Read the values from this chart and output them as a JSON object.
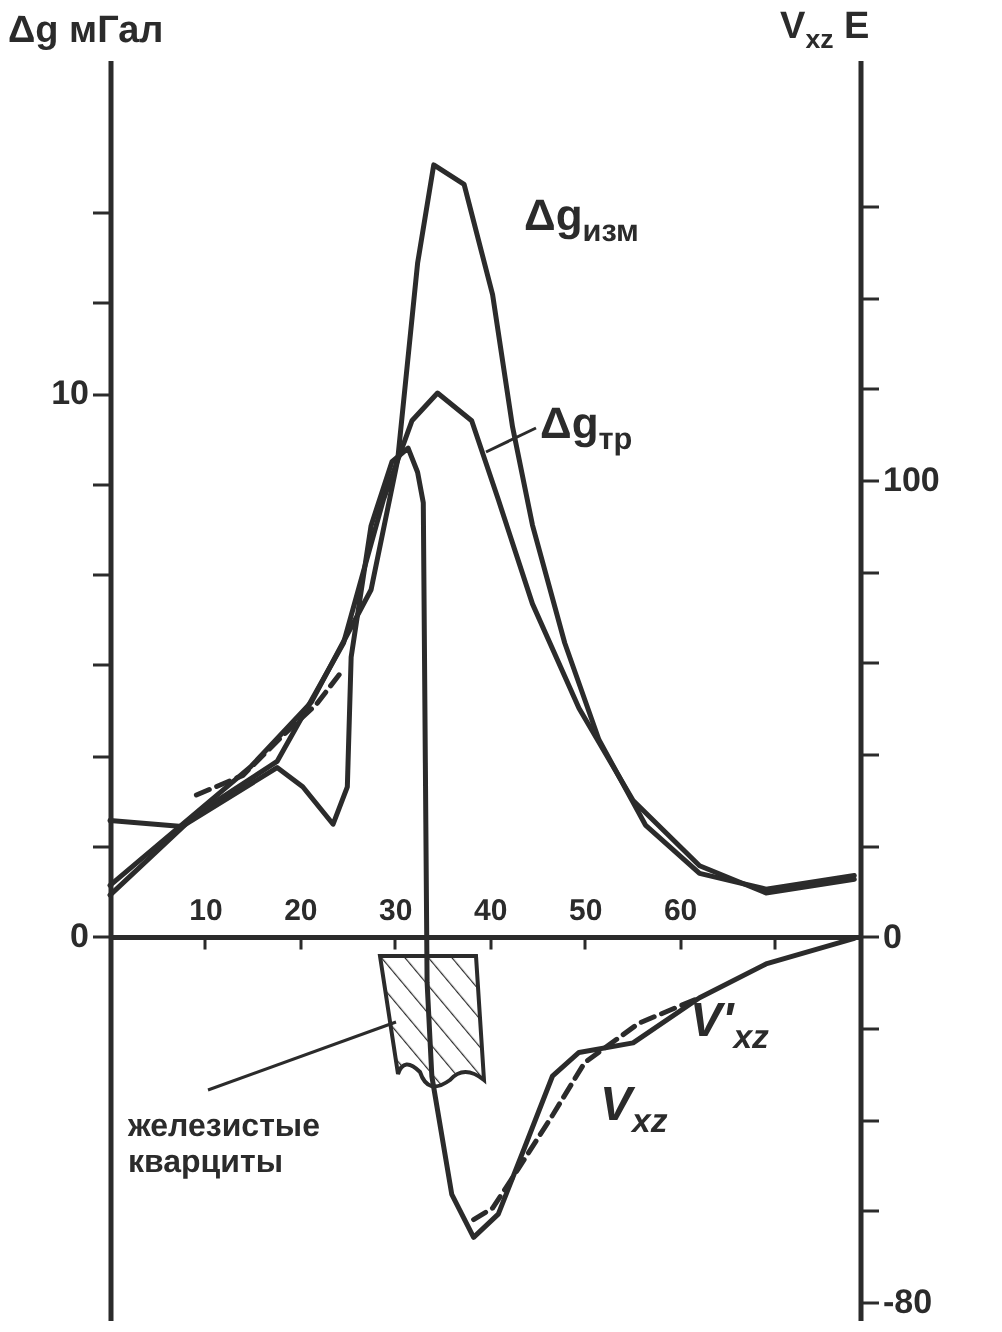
{
  "chart_data": {
    "type": "line",
    "ylabel": "Δg мГал",
    "y2label": "V$_{xz}$ E",
    "xlim": [
      0,
      79
    ],
    "xticks": [
      10,
      20,
      30,
      40,
      50,
      60,
      {
        "value": 70,
        "label": null
      }
    ],
    "ylim": [
      -7.06,
      16.13
    ],
    "yticks": [
      0,
      {
        "value": 1.67,
        "label": null
      },
      {
        "value": 3.33,
        "label": null
      },
      {
        "value": 5,
        "label": null
      },
      {
        "value": 6.67,
        "label": null
      },
      {
        "value": 8.33,
        "label": null
      },
      10,
      {
        "value": 11.67,
        "label": null
      },
      {
        "value": 13.33,
        "label": null
      }
    ],
    "y2lim": [
      -84,
      192
    ],
    "y2ticks": [
      -80,
      {
        "value": -60,
        "label": null
      },
      {
        "value": -40,
        "label": null
      },
      {
        "value": -20,
        "label": null
      },
      0,
      {
        "value": 20,
        "label": null
      },
      {
        "value": 40,
        "label": null
      },
      {
        "value": 60,
        "label": null
      },
      {
        "value": 80,
        "label": null
      },
      100,
      {
        "value": 120,
        "label": null
      },
      {
        "value": 140,
        "label": null
      },
      {
        "value": 160,
        "label": null
      }
    ],
    "series": [
      {
        "name": "Δg$_{изм}$",
        "color": "#2b2b2b",
        "line_style": "solid",
        "x": [
          0,
          14.8,
          21.2,
          27.5,
          30.3,
          32.4,
          34.1,
          37.3,
          40.3,
          42.4,
          44.5,
          47.9,
          51.5,
          56.4,
          62.1,
          69.1,
          78.4
        ],
        "values": [
          0.94,
          3.12,
          4.31,
          6.38,
          8.77,
          12.39,
          14.2,
          13.84,
          11.81,
          9.38,
          7.57,
          5.4,
          3.62,
          2.05,
          1.16,
          0.87,
          1.12
        ]
      },
      {
        "name": "Δg$_{тр}$",
        "color": "#2b2b2b",
        "line_style": "solid",
        "x": [
          0,
          9.1,
          17.6,
          24.6,
          28.8,
          31.8,
          34.5,
          38.1,
          40.9,
          44.5,
          49.4,
          55.1,
          62.1,
          69.1,
          78.4
        ],
        "values": [
          0.76,
          2.25,
          3.22,
          5.4,
          8.04,
          9.49,
          10,
          9.49,
          8.04,
          6.12,
          4.2,
          2.5,
          1.3,
          0.8,
          1.05
        ]
      },
      {
        "name": "V$_{xz}$",
        "color": "#2b2b2b",
        "line_style": "solid",
        "axis": "y2",
        "x": [
          0,
          7.6,
          17.6,
          20.3,
          23.5,
          25,
          25.4,
          27.5,
          29.7,
          31.4,
          32.4,
          33,
          33.4,
          33.9,
          36,
          38.3,
          40.9,
          43.6,
          46.6,
          49.4,
          55.1,
          62.1,
          69.1,
          78.4
        ],
        "values": [
          25.4,
          24.1,
          37,
          32.8,
          24.6,
          32.8,
          61.2,
          90,
          104,
          107,
          101.7,
          95,
          -10,
          -30.6,
          -56.5,
          -65.9,
          -60.8,
          -46.6,
          -30.6,
          -25.4,
          -23.3,
          -13.4,
          -6,
          -0.4
        ]
      },
      {
        "name": "V'$_{xz}$",
        "color": "#2b2b2b",
        "line_style": "dashed",
        "axis": "y2",
        "x": [
          9.1,
          14,
          18.2,
          21.8,
          24.6,
          32,
          38.3,
          40.3,
          43,
          46.6,
          50,
          55.7,
          62.1
        ],
        "values": [
          31,
          35.3,
          44,
          51,
          58.6,
          null,
          -62,
          -59.5,
          -50.9,
          -39.2,
          -27.6,
          -19,
          -13.4
        ]
      }
    ],
    "annotations": [
      "железистые кварциты"
    ]
  }
}
